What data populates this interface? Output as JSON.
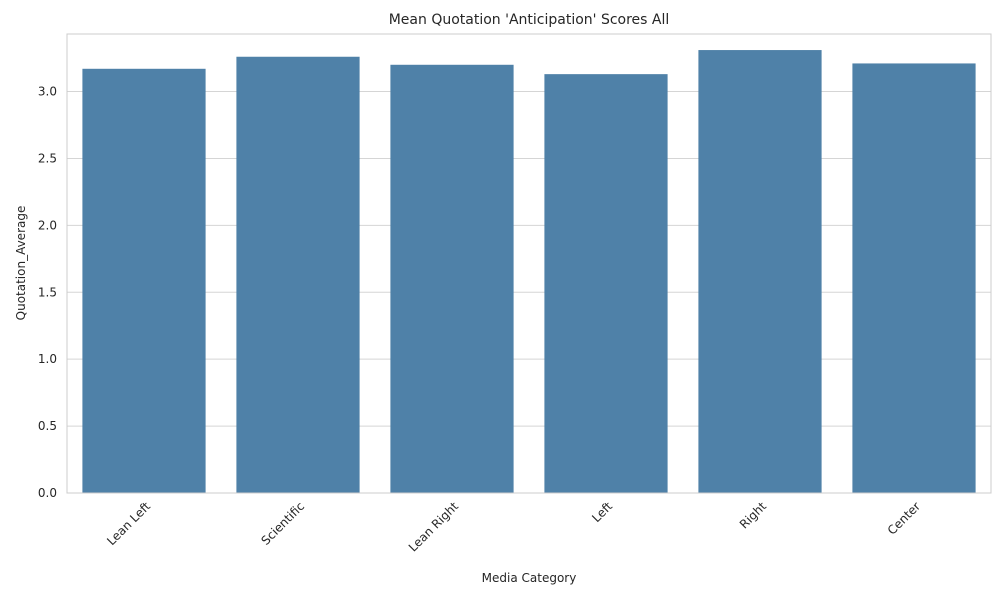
{
  "chart_data": {
    "type": "bar",
    "title": "Mean Quotation 'Anticipation' Scores All",
    "xlabel": "Media Category",
    "ylabel": "Quotation_Average",
    "categories": [
      "Lean Left",
      "Scientific",
      "Lean Right",
      "Left",
      "Right",
      "Center"
    ],
    "values": [
      3.17,
      3.26,
      3.2,
      3.13,
      3.31,
      3.21
    ],
    "ylim": [
      0,
      3.43
    ],
    "yticks": [
      "0.0",
      "0.5",
      "1.0",
      "1.5",
      "2.0",
      "2.5",
      "3.0"
    ],
    "grid": "horizontal",
    "bar_color": "#4f81a8",
    "legend": "none"
  }
}
